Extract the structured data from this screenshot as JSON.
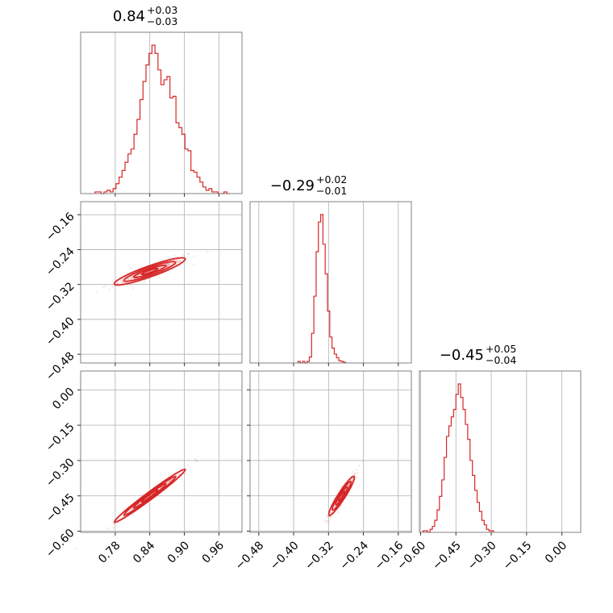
{
  "chart_data": {
    "type": "corner",
    "color": "#d62728",
    "grid": true,
    "parameters": [
      {
        "median": "0.84",
        "plus": "+0.03",
        "minus": "−0.03",
        "range": [
          0.72,
          1.0
        ]
      },
      {
        "median": "−0.29",
        "plus": "+0.02",
        "minus": "−0.01",
        "range": [
          -0.5,
          -0.13
        ]
      },
      {
        "median": "−0.45",
        "plus": "+0.05",
        "minus": "−0.04",
        "range": [
          -0.605,
          0.08
        ]
      }
    ],
    "ticks": [
      {
        "values": [
          0.78,
          0.84,
          0.9,
          0.96
        ],
        "labels": [
          "0.78",
          "0.84",
          "0.90",
          "0.96"
        ]
      },
      {
        "values": [
          -0.48,
          -0.4,
          -0.32,
          -0.24,
          -0.16
        ],
        "labels": [
          "−0.48",
          "−0.40",
          "−0.32",
          "−0.24",
          "−0.16"
        ]
      },
      {
        "values": [
          -0.6,
          -0.45,
          -0.3,
          -0.15,
          0.0
        ],
        "labels": [
          "−0.60",
          "−0.45",
          "−0.30",
          "−0.15",
          "0.00"
        ]
      }
    ],
    "histograms": [
      {
        "bin_start": 0.745,
        "bin_width": 0.0052,
        "counts": [
          1,
          1,
          0,
          1,
          2,
          1,
          3,
          6,
          10,
          14,
          19,
          24,
          27,
          36,
          45,
          57,
          68,
          78,
          85,
          90,
          85,
          75,
          66,
          69,
          71,
          58,
          59,
          43,
          40,
          36,
          27,
          26,
          14,
          13,
          10,
          7,
          4,
          2,
          3,
          1,
          1,
          0,
          0,
          1,
          0
        ]
      },
      {
        "bin_start": -0.39,
        "bin_width": 0.0052,
        "counts": [
          2,
          0,
          2,
          0,
          2,
          8,
          40,
          90,
          150,
          190,
          200,
          160,
          120,
          70,
          35,
          20,
          12,
          7,
          3,
          2,
          1
        ]
      },
      {
        "bin_start": -0.59,
        "bin_width": 0.01,
        "counts": [
          1,
          1,
          0,
          2,
          4,
          8,
          15,
          24,
          35,
          50,
          64,
          71,
          77,
          82,
          92,
          99,
          90,
          82,
          72,
          62,
          48,
          38,
          28,
          20,
          14,
          8,
          5,
          2,
          1,
          1
        ]
      }
    ],
    "correlations": [
      {
        "x": 0,
        "y": 1,
        "slope": 0.47,
        "x0": 0.84,
        "y0": -0.29,
        "sd_x": 0.028,
        "sd_perp": 0.006
      },
      {
        "x": 0,
        "y": 2,
        "slope": 1.82,
        "x0": 0.84,
        "y0": -0.45,
        "sd_x": 0.028,
        "sd_perp": 0.008
      },
      {
        "x": 1,
        "y": 2,
        "slope": 2.9,
        "x0": -0.29,
        "y0": -0.45,
        "sd_x": 0.013,
        "sd_perp": 0.012
      }
    ]
  }
}
